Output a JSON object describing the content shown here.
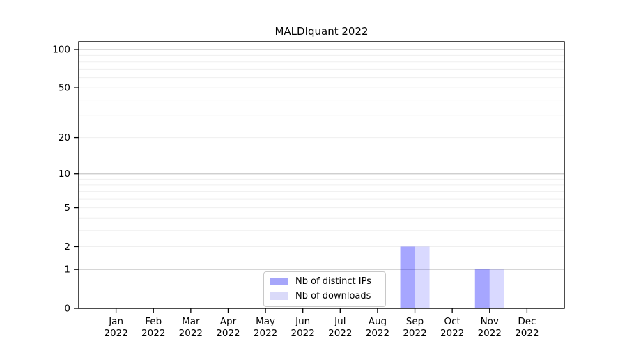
{
  "chart_data": {
    "type": "bar",
    "title": "MALDIquant 2022",
    "categories": [
      "Jan 2022",
      "Feb 2022",
      "Mar 2022",
      "Apr 2022",
      "May 2022",
      "Jun 2022",
      "Jul 2022",
      "Aug 2022",
      "Sep 2022",
      "Oct 2022",
      "Nov 2022",
      "Dec 2022"
    ],
    "series": [
      {
        "name": "Nb of distinct IPs",
        "color": "#0000ff",
        "opacity": 0.35,
        "color_on_white": "#a6a6fa",
        "values": [
          0,
          0,
          0,
          0,
          0,
          0,
          0,
          0,
          2,
          0,
          1,
          0
        ]
      },
      {
        "name": "Nb of downloads",
        "color": "#0000ff",
        "opacity": 0.15,
        "color_on_white": "#dadaf9",
        "values": [
          0,
          0,
          0,
          0,
          0,
          0,
          0,
          0,
          2,
          0,
          1,
          0
        ]
      }
    ],
    "xlabel": "",
    "ylabel": "",
    "yscale": "log1p",
    "ylim": [
      0,
      115
    ],
    "yticks_labeled": [
      0,
      1,
      2,
      5,
      10,
      20,
      50,
      100
    ],
    "gridlines_major": [
      1,
      10,
      100
    ],
    "gridlines_minor": [
      2,
      3,
      4,
      5,
      6,
      7,
      8,
      9,
      20,
      30,
      40,
      50,
      60,
      70,
      80,
      90
    ],
    "grid": "on",
    "legend_position": "inside-bottom-center",
    "colors": {
      "axis": "#000000",
      "grid_major": "#c8c8c8",
      "grid_minor": "#efefef",
      "tick_label": "#000000"
    }
  }
}
